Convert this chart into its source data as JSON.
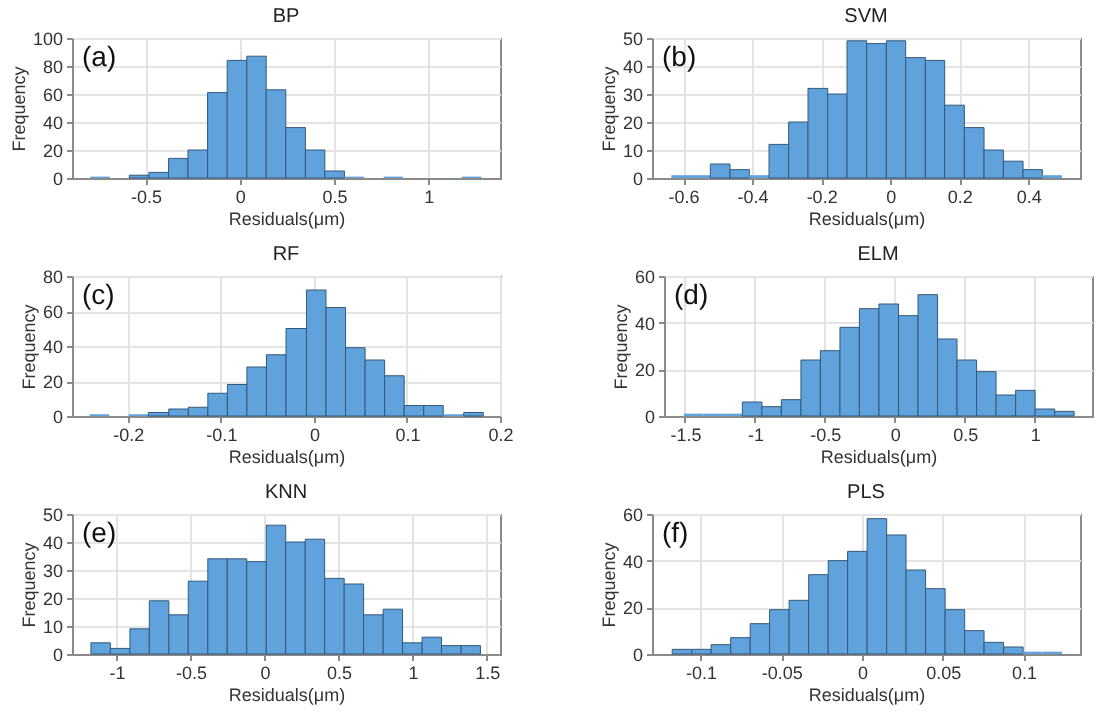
{
  "chart_data": [
    {
      "type": "histogram",
      "title": "BP",
      "xlabel": "Residuals(μm)",
      "ylabel": "Frequency",
      "annotations": [
        "(a)"
      ],
      "color": "#5fa2dc",
      "grid": true,
      "bins": [
        -0.793,
        -0.689,
        -0.586,
        -0.482,
        -0.378,
        -0.275,
        -0.171,
        -0.067,
        0.037,
        0.14,
        0.244,
        0.348,
        0.451,
        0.555,
        0.659,
        0.763,
        0.866,
        0.97,
        1.074,
        1.177,
        1.281
      ],
      "values": [
        1,
        0,
        2,
        4,
        14,
        20,
        61,
        84,
        87,
        63,
        36,
        20,
        5,
        1,
        0,
        1,
        0,
        0,
        0,
        1
      ],
      "xlim": [
        -0.89,
        1.38
      ],
      "xticks": [
        -0.5,
        0,
        0.5,
        1
      ],
      "ylim": [
        0,
        100
      ],
      "yticks": [
        0,
        20,
        40,
        60,
        80,
        100
      ]
    },
    {
      "type": "histogram",
      "title": "SVM",
      "xlabel": "Residuals(μm)",
      "ylabel": "Frequency",
      "annotations": [
        "(b)"
      ],
      "color": "#5fa2dc",
      "grid": true,
      "bins": [
        -0.634,
        -0.577,
        -0.521,
        -0.464,
        -0.408,
        -0.351,
        -0.294,
        -0.238,
        -0.181,
        -0.125,
        -0.068,
        -0.011,
        0.045,
        0.102,
        0.158,
        0.215,
        0.272,
        0.328,
        0.385,
        0.441,
        0.498
      ],
      "values": [
        1,
        1,
        5,
        3,
        1,
        12,
        20,
        32,
        30,
        49,
        48,
        49,
        43,
        42,
        26,
        18,
        10,
        6,
        3,
        1
      ],
      "xlim": [
        -0.69,
        0.55
      ],
      "xticks": [
        -0.6,
        -0.4,
        -0.2,
        0,
        0.2,
        0.4
      ],
      "ylim": [
        0,
        50
      ],
      "yticks": [
        0,
        10,
        20,
        30,
        40,
        50
      ]
    },
    {
      "type": "histogram",
      "title": "RF",
      "xlabel": "Residuals(μm)",
      "ylabel": "Frequency",
      "annotations": [
        "(c)"
      ],
      "color": "#5fa2dc",
      "grid": true,
      "bins": [
        -0.241,
        -0.22,
        -0.199,
        -0.178,
        -0.156,
        -0.135,
        -0.114,
        -0.093,
        -0.072,
        -0.051,
        -0.03,
        -0.008,
        0.013,
        0.034,
        0.055,
        0.076,
        0.097,
        0.118,
        0.139,
        0.161,
        0.182
      ],
      "values": [
        1,
        0,
        1,
        2,
        4,
        5,
        13,
        18,
        28,
        35,
        50,
        72,
        62,
        39,
        32,
        23,
        6,
        6,
        1,
        2
      ],
      "xlim": [
        -0.26,
        0.2
      ],
      "xticks": [
        -0.2,
        -0.1,
        0,
        0.1,
        0.2
      ],
      "ylim": [
        0,
        80
      ],
      "yticks": [
        0,
        20,
        40,
        60,
        80
      ]
    },
    {
      "type": "histogram",
      "title": "ELM",
      "xlabel": "Residuals(μm)",
      "ylabel": "Frequency",
      "annotations": [
        "(d)"
      ],
      "color": "#5fa2dc",
      "grid": true,
      "bins": [
        -1.508,
        -1.369,
        -1.229,
        -1.09,
        -0.95,
        -0.811,
        -0.671,
        -0.532,
        -0.392,
        -0.253,
        -0.113,
        0.027,
        0.166,
        0.306,
        0.445,
        0.585,
        0.724,
        0.864,
        1.003,
        1.143,
        1.282
      ],
      "values": [
        1,
        1,
        1,
        6,
        4,
        7,
        24,
        28,
        38,
        46,
        48,
        43,
        52,
        33,
        24,
        19,
        9,
        11,
        3,
        2
      ],
      "xlim": [
        -1.65,
        1.41
      ],
      "xticks": [
        -1.5,
        -1,
        -0.5,
        0,
        0.5,
        1
      ],
      "ylim": [
        0,
        60
      ],
      "yticks": [
        0,
        20,
        40,
        60
      ]
    },
    {
      "type": "histogram",
      "title": "KNN",
      "xlabel": "Residuals(μm)",
      "ylabel": "Frequency",
      "annotations": [
        "(e)"
      ],
      "color": "#5fa2dc",
      "grid": true,
      "bins": [
        -1.172,
        -1.041,
        -0.909,
        -0.778,
        -0.646,
        -0.515,
        -0.383,
        -0.252,
        -0.12,
        0.012,
        0.143,
        0.275,
        0.406,
        0.538,
        0.669,
        0.801,
        0.932,
        1.064,
        1.195,
        1.327,
        1.458
      ],
      "values": [
        4,
        2,
        9,
        19,
        14,
        26,
        34,
        34,
        33,
        46,
        40,
        41,
        27,
        25,
        14,
        16,
        4,
        6,
        3,
        3
      ],
      "xlim": [
        -1.3,
        1.59
      ],
      "xticks": [
        -1,
        -0.5,
        0,
        0.5,
        1,
        1.5
      ],
      "ylim": [
        0,
        50
      ],
      "yticks": [
        0,
        10,
        20,
        30,
        40,
        50
      ]
    },
    {
      "type": "histogram",
      "title": "PLS",
      "xlabel": "Residuals(μm)",
      "ylabel": "Frequency",
      "annotations": [
        "(f)"
      ],
      "color": "#5fa2dc",
      "grid": true,
      "bins": [
        -0.1175,
        -0.1054,
        -0.0934,
        -0.0813,
        -0.0692,
        -0.0572,
        -0.0451,
        -0.033,
        -0.0209,
        -0.0089,
        0.0032,
        0.0153,
        0.0273,
        0.0394,
        0.0515,
        0.0636,
        0.0756,
        0.0877,
        0.0998,
        0.1118,
        0.1239
      ],
      "values": [
        2,
        2,
        4,
        7,
        13,
        19,
        23,
        34,
        40,
        44,
        58,
        51,
        36,
        28,
        19,
        10,
        5,
        3,
        1,
        1
      ],
      "xlim": [
        -0.13,
        0.135
      ],
      "xticks": [
        -0.1,
        -0.05,
        0,
        0.05,
        0.1
      ],
      "ylim": [
        0,
        60
      ],
      "yticks": [
        0,
        20,
        40,
        60
      ]
    }
  ]
}
